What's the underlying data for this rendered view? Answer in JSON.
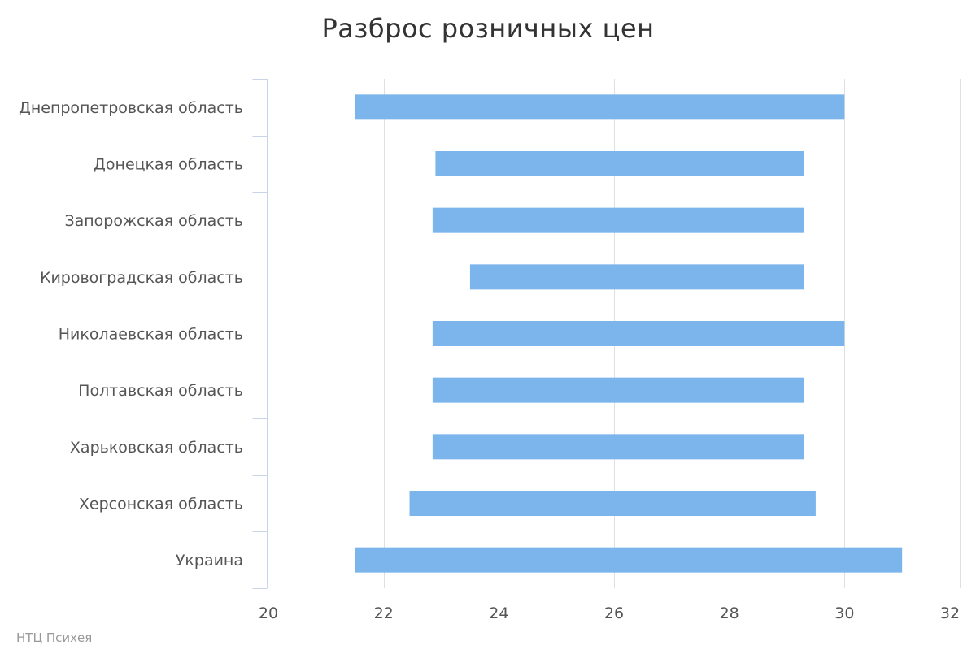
{
  "chart_data": {
    "type": "bar",
    "orientation": "horizontal",
    "subtype": "range",
    "title": "Разброс розничных цен",
    "categories": [
      "Днепропетровская область",
      "Донецкая область",
      "Запорожская область",
      "Кировоградская область",
      "Николаевская область",
      "Полтавская область",
      "Харьковская область",
      "Херсонская область",
      "Украина"
    ],
    "series": [
      {
        "low": [
          21.5,
          22.9,
          22.85,
          23.5,
          22.85,
          22.85,
          22.85,
          22.45,
          21.5
        ],
        "high": [
          30.0,
          29.3,
          29.3,
          29.3,
          30.0,
          29.3,
          29.3,
          29.5,
          31.0
        ]
      }
    ],
    "xlim": [
      20,
      32
    ],
    "ticks": [
      "20",
      "22",
      "24",
      "26",
      "28",
      "30",
      "32"
    ],
    "grid": true,
    "legend": "none",
    "bar_color": "#7cb5ec",
    "credit": "НТЦ Психея"
  }
}
